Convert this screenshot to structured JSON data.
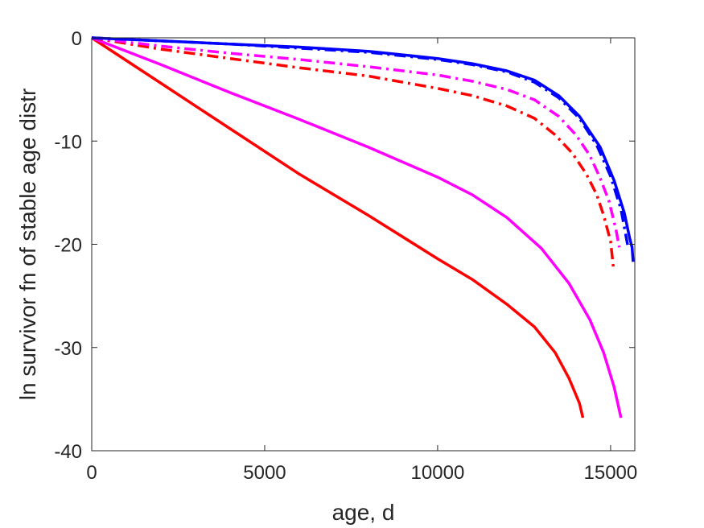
{
  "chart_data": {
    "type": "line",
    "title": "",
    "xlabel": "age, d",
    "ylabel": "ln survivor fn of stable age distr",
    "xlim": [
      0,
      15700
    ],
    "ylim": [
      -40,
      0
    ],
    "xticks": [
      0,
      5000,
      10000,
      15000
    ],
    "yticks": [
      0,
      -10,
      -20,
      -30,
      -40
    ],
    "xtick_labels": [
      "0",
      "5000",
      "10000",
      "15000"
    ],
    "ytick_labels": [
      "0",
      "-10",
      "-20",
      "-30",
      "-40"
    ],
    "grid": false,
    "legend": "none",
    "series": [
      {
        "color": "#ff0000",
        "style": "solid",
        "x": [
          0,
          2000,
          4000,
          6000,
          8000,
          10000,
          11000,
          12000,
          12800,
          13400,
          13800,
          14100,
          14200
        ],
        "y": [
          0,
          -4.4,
          -8.8,
          -13.2,
          -17.2,
          -21.4,
          -23.4,
          -25.8,
          -28.0,
          -30.5,
          -33.0,
          -35.4,
          -36.8
        ]
      },
      {
        "color": "#ff00ff",
        "style": "solid",
        "x": [
          0,
          2000,
          4000,
          6000,
          8000,
          10000,
          11000,
          12000,
          13000,
          13800,
          14400,
          14800,
          15100,
          15300
        ],
        "y": [
          0,
          -2.6,
          -5.3,
          -7.9,
          -10.6,
          -13.5,
          -15.2,
          -17.4,
          -20.4,
          -23.8,
          -27.3,
          -30.5,
          -33.8,
          -36.8
        ]
      },
      {
        "color": "#ff0000",
        "style": "dashdot",
        "x": [
          0,
          2000,
          4000,
          6000,
          8000,
          10000,
          11000,
          12000,
          12800,
          13400,
          13900,
          14300,
          14600,
          14800,
          15000,
          15080
        ],
        "y": [
          0,
          -1.1,
          -2.0,
          -2.9,
          -3.7,
          -4.9,
          -5.6,
          -6.6,
          -7.8,
          -9.4,
          -11.2,
          -13.2,
          -15.2,
          -17.2,
          -19.7,
          -22.2
        ]
      },
      {
        "color": "#ff00ff",
        "style": "dashdot",
        "x": [
          0,
          2000,
          4000,
          6000,
          8000,
          10000,
          11000,
          12000,
          12800,
          13500,
          14000,
          14400,
          14700,
          14950,
          15150,
          15250
        ],
        "y": [
          0,
          -0.8,
          -1.5,
          -2.1,
          -2.8,
          -3.6,
          -4.2,
          -5.0,
          -6.0,
          -7.6,
          -9.4,
          -11.4,
          -13.6,
          -15.8,
          -18.5,
          -20.3
        ]
      },
      {
        "color": "#0000ff",
        "style": "dashdot",
        "x": [
          0,
          2000,
          4000,
          6000,
          8000,
          10000,
          11000,
          12000,
          12800,
          13500,
          14100,
          14600,
          15000,
          15300,
          15500
        ],
        "y": [
          0,
          -0.3,
          -0.6,
          -1.0,
          -1.4,
          -2.1,
          -2.6,
          -3.3,
          -4.3,
          -5.8,
          -7.8,
          -10.4,
          -13.4,
          -16.6,
          -20.2
        ]
      },
      {
        "color": "#0000ff",
        "style": "solid",
        "x": [
          0,
          2000,
          4000,
          6000,
          8000,
          10000,
          11000,
          12000,
          12800,
          13500,
          14100,
          14700,
          15100,
          15400,
          15550,
          15620,
          15650
        ],
        "y": [
          0,
          -0.3,
          -0.6,
          -0.9,
          -1.3,
          -2.0,
          -2.5,
          -3.2,
          -4.1,
          -5.6,
          -7.6,
          -10.6,
          -13.8,
          -17.0,
          -19.4,
          -20.3,
          -21.7
        ]
      }
    ]
  }
}
